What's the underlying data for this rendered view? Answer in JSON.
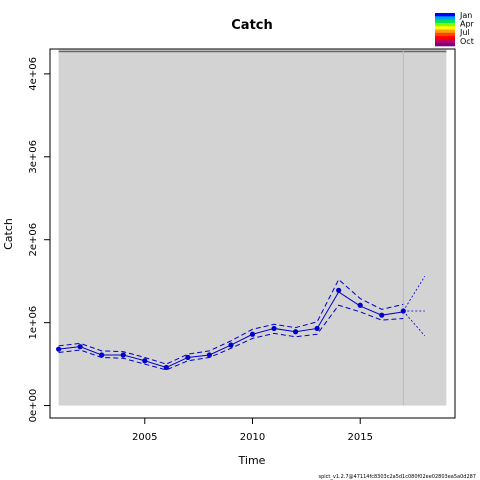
{
  "chart_data": {
    "type": "line",
    "title": "Catch",
    "xlabel": "Time",
    "ylabel": "Catch",
    "xlim": [
      2000.6,
      2019.4
    ],
    "ylim": [
      -150000,
      4300000
    ],
    "x_ticks": [
      2005,
      2010,
      2015
    ],
    "y_ticks": [
      0,
      1000000,
      2000000,
      3000000,
      4000000
    ],
    "y_tick_labels": [
      "0e+00",
      "1e+06",
      "2e+06",
      "3e+06",
      "4e+06"
    ],
    "shaded_region": {
      "x": [
        2001,
        2019
      ],
      "y": [
        0,
        4300000
      ],
      "color": "#d3d3d3"
    },
    "reference_hline": 4270000,
    "reference_vline": 2017,
    "observed": {
      "x": [
        2001,
        2002,
        2003,
        2004,
        2005,
        2006,
        2007,
        2008,
        2009,
        2010,
        2011,
        2012,
        2013,
        2014,
        2015,
        2016,
        2017
      ],
      "y": [
        680000,
        710000,
        610000,
        610000,
        540000,
        460000,
        580000,
        610000,
        730000,
        860000,
        930000,
        890000,
        930000,
        1390000,
        1210000,
        1090000,
        1140000
      ]
    },
    "estimate": {
      "x": [
        2001,
        2002,
        2003,
        2004,
        2005,
        2006,
        2007,
        2008,
        2009,
        2010,
        2011,
        2012,
        2013,
        2014,
        2015,
        2016,
        2017
      ],
      "y": [
        680000,
        710000,
        610000,
        610000,
        540000,
        460000,
        580000,
        610000,
        730000,
        860000,
        930000,
        890000,
        930000,
        1370000,
        1200000,
        1090000,
        1130000
      ]
    },
    "upper_ci": {
      "x": [
        2001,
        2002,
        2003,
        2004,
        2005,
        2006,
        2007,
        2008,
        2009,
        2010,
        2011,
        2012,
        2013,
        2014,
        2015,
        2016,
        2017
      ],
      "y": [
        720000,
        750000,
        660000,
        650000,
        580000,
        500000,
        620000,
        660000,
        780000,
        920000,
        980000,
        940000,
        1010000,
        1520000,
        1290000,
        1160000,
        1220000
      ]
    },
    "lower_ci": {
      "x": [
        2001,
        2002,
        2003,
        2004,
        2005,
        2006,
        2007,
        2008,
        2009,
        2010,
        2011,
        2012,
        2013,
        2014,
        2015,
        2016,
        2017
      ],
      "y": [
        640000,
        670000,
        580000,
        570000,
        500000,
        430000,
        540000,
        580000,
        690000,
        810000,
        870000,
        830000,
        860000,
        1210000,
        1130000,
        1030000,
        1050000
      ]
    },
    "projection": {
      "x": [
        2017,
        2018
      ],
      "median": [
        1140000,
        1140000
      ],
      "upper": [
        1140000,
        1560000
      ],
      "lower": [
        1140000,
        840000
      ]
    },
    "line_color": "#0000cd",
    "legend": {
      "labels": [
        "Jan",
        "Apr",
        "Jul",
        "Oct"
      ],
      "colors": [
        "#0000ff",
        "#00a0ff",
        "#00e060",
        "#80ff00",
        "#ffff00",
        "#ffa000",
        "#ff4000",
        "#ff0000",
        "#c00060",
        "#800080"
      ]
    },
    "footer": "spict_v1.2.7@47114fc8303c2a5d1c080f02ee02803ea5a0d287"
  }
}
